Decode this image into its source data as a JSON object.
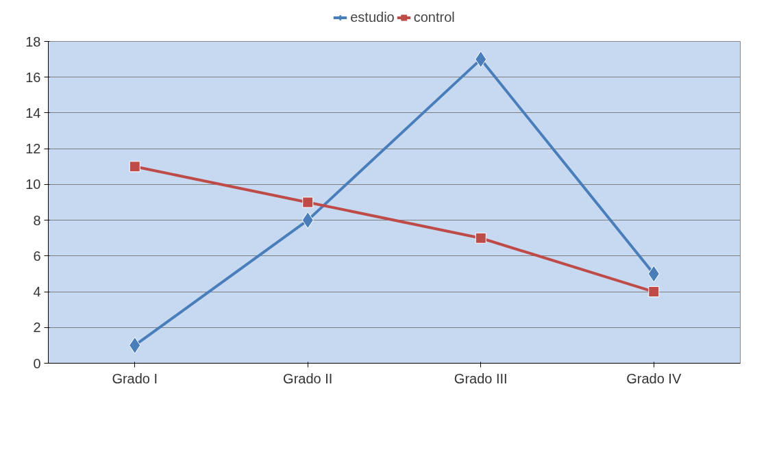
{
  "chart_data": {
    "type": "line",
    "categories": [
      "Grado I",
      "Grado II",
      "Grado III",
      "Grado IV"
    ],
    "series": [
      {
        "name": "estudio",
        "color": "#4a7ebb",
        "values": [
          1,
          8,
          17,
          5
        ],
        "marker": "diamond"
      },
      {
        "name": "control",
        "color": "#be4b48",
        "values": [
          11,
          9,
          7,
          4
        ],
        "marker": "square"
      }
    ],
    "ylim": [
      0,
      18
    ],
    "yticks": [
      0,
      2,
      4,
      6,
      8,
      10,
      12,
      14,
      16,
      18
    ],
    "grid": "y",
    "legend": "top",
    "line_style": "solid"
  }
}
